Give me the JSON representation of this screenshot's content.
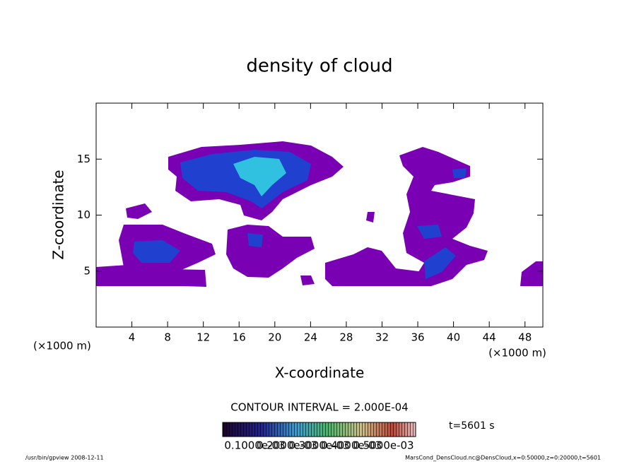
{
  "chart_data": {
    "type": "contour",
    "title": "density of cloud",
    "x_label": "X-coordinate",
    "y_label": "Z-coordinate",
    "x_unit": "(×1000 m)",
    "y_unit": "(×1000 m)",
    "xlim": [
      0,
      50
    ],
    "ylim": [
      0,
      20
    ],
    "xticks": [
      4,
      8,
      12,
      16,
      20,
      24,
      28,
      32,
      36,
      40,
      44,
      48
    ],
    "yticks": [
      5,
      10,
      15
    ],
    "contour_interval": "CONTOUR INTERVAL = 2.000E-04",
    "clim": [
      0,
      0.0006
    ],
    "colorbar_ticks": [
      {
        "value": 0.0001,
        "label": "0.1000e-03"
      },
      {
        "value": 0.0002,
        "label": "0.2000e-03"
      },
      {
        "value": 0.0003,
        "label": "0.3000e-03"
      },
      {
        "value": 0.0004,
        "label": "0.4000e-03"
      },
      {
        "value": 0.0005,
        "label": "0.5000e-03"
      }
    ],
    "time_label": "t=5601 s",
    "footer_left": "/usr/bin/gpview  2008-12-11",
    "footer_right": "MarsCond_DensCloud.nc@DensCloud,x=0:50000,z=0:20000,t=5601"
  }
}
